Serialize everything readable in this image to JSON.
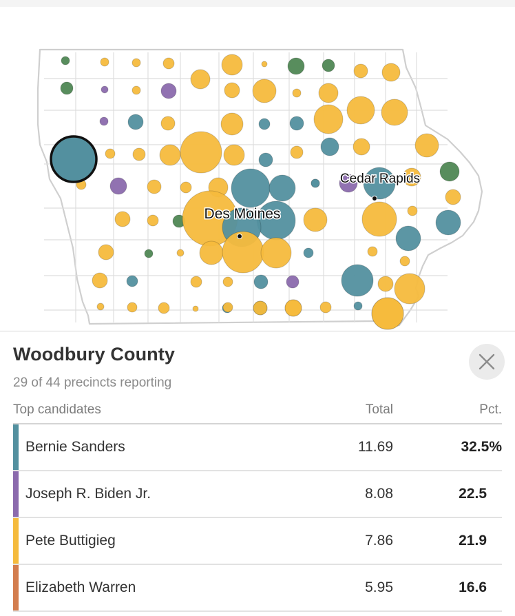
{
  "colors": {
    "sanders": "#53909f",
    "biden": "#8b6aad",
    "buttigieg": "#f5bb3d",
    "warren": "#d37d4e",
    "klobuchar": "#4f8754"
  },
  "map": {
    "cities": [
      {
        "name": "Des Moines"
      },
      {
        "name": "Cedar Rapids"
      }
    ],
    "bubbles": [
      {
        "c": "klobuchar"
      },
      {
        "c": "buttigieg"
      },
      {
        "c": "buttigieg"
      },
      {
        "c": "buttigieg"
      },
      {
        "c": "buttigieg"
      },
      {
        "c": "buttigieg"
      },
      {
        "c": "klobuchar"
      },
      {
        "c": "klobuchar"
      },
      {
        "c": "buttigieg"
      },
      {
        "c": "buttigieg"
      },
      {
        "c": "buttigieg"
      },
      {
        "c": "klobuchar"
      },
      {
        "c": "biden"
      },
      {
        "c": "buttigieg"
      },
      {
        "c": "biden"
      },
      {
        "c": "buttigieg"
      },
      {
        "c": "buttigieg"
      },
      {
        "c": "buttigieg"
      },
      {
        "c": "buttigieg"
      },
      {
        "c": "buttigieg"
      },
      {
        "c": "buttigieg"
      },
      {
        "c": "biden"
      },
      {
        "c": "sanders"
      },
      {
        "c": "buttigieg"
      },
      {
        "c": "buttigieg"
      },
      {
        "c": "sanders"
      },
      {
        "c": "sanders"
      },
      {
        "c": "buttigieg"
      },
      {
        "c": "buttigieg"
      },
      {
        "c": "sanders"
      },
      {
        "c": "buttigieg"
      },
      {
        "c": "buttigieg"
      },
      {
        "c": "buttigieg"
      },
      {
        "c": "buttigieg"
      },
      {
        "c": "buttigieg"
      },
      {
        "c": "buttigieg"
      },
      {
        "c": "sanders"
      },
      {
        "c": "buttigieg"
      },
      {
        "c": "klobuchar"
      },
      {
        "c": "buttigieg"
      },
      {
        "c": "buttigieg"
      },
      {
        "c": "biden"
      },
      {
        "c": "buttigieg"
      },
      {
        "c": "buttigieg"
      },
      {
        "c": "buttigieg"
      },
      {
        "c": "sanders"
      },
      {
        "c": "sanders"
      },
      {
        "c": "sanders"
      },
      {
        "c": "biden"
      },
      {
        "c": "sanders"
      },
      {
        "c": "buttigieg"
      },
      {
        "c": "buttigieg"
      },
      {
        "c": "buttigieg"
      },
      {
        "c": "buttigieg"
      },
      {
        "c": "klobuchar"
      },
      {
        "c": "buttigieg"
      },
      {
        "c": "sanders"
      },
      {
        "c": "sanders"
      },
      {
        "c": "buttigieg"
      },
      {
        "c": "buttigieg"
      },
      {
        "c": "sanders"
      },
      {
        "c": "sanders"
      },
      {
        "c": "buttigieg"
      },
      {
        "c": "klobuchar"
      },
      {
        "c": "buttigieg"
      },
      {
        "c": "buttigieg"
      },
      {
        "c": "buttigieg"
      },
      {
        "c": "buttigieg"
      },
      {
        "c": "sanders"
      },
      {
        "c": "buttigieg"
      },
      {
        "c": "buttigieg"
      },
      {
        "c": "sanders"
      },
      {
        "c": "buttigieg"
      },
      {
        "c": "buttigieg"
      },
      {
        "c": "sanders"
      },
      {
        "c": "biden"
      },
      {
        "c": "buttigieg"
      },
      {
        "c": "sanders"
      },
      {
        "c": "buttigieg"
      },
      {
        "c": "buttigieg"
      },
      {
        "c": "buttigieg"
      },
      {
        "c": "buttigieg"
      },
      {
        "c": "buttigieg"
      },
      {
        "c": "buttigieg"
      },
      {
        "c": "sanders"
      },
      {
        "c": "klobuchar"
      },
      {
        "c": "buttigieg"
      },
      {
        "c": "buttigieg"
      },
      {
        "c": "sanders"
      },
      {
        "c": "buttigieg"
      },
      {
        "c": "buttigieg"
      },
      {
        "c": "buttigieg"
      },
      {
        "c": "buttigieg"
      },
      {
        "c": "buttigieg"
      },
      {
        "c": "sanders"
      }
    ],
    "selected_county": {
      "c": "sanders"
    }
  },
  "panel": {
    "county_name": "Woodbury County",
    "precincts_reporting": "29 of 44 precincts reporting",
    "headers": {
      "candidates": "Top candidates",
      "total": "Total",
      "pct": "Pct."
    },
    "close_icon": "close-icon",
    "candidates": [
      {
        "name": "Bernie Sanders",
        "total": "11.69",
        "pct": "32.5%",
        "color": "#53909f"
      },
      {
        "name": "Joseph R. Biden Jr.",
        "total": "8.08",
        "pct": "22.5",
        "color": "#8b6aad"
      },
      {
        "name": "Pete Buttigieg",
        "total": "7.86",
        "pct": "21.9",
        "color": "#f5bb3d"
      },
      {
        "name": "Elizabeth Warren",
        "total": "5.95",
        "pct": "16.6",
        "color": "#d37d4e"
      }
    ]
  }
}
